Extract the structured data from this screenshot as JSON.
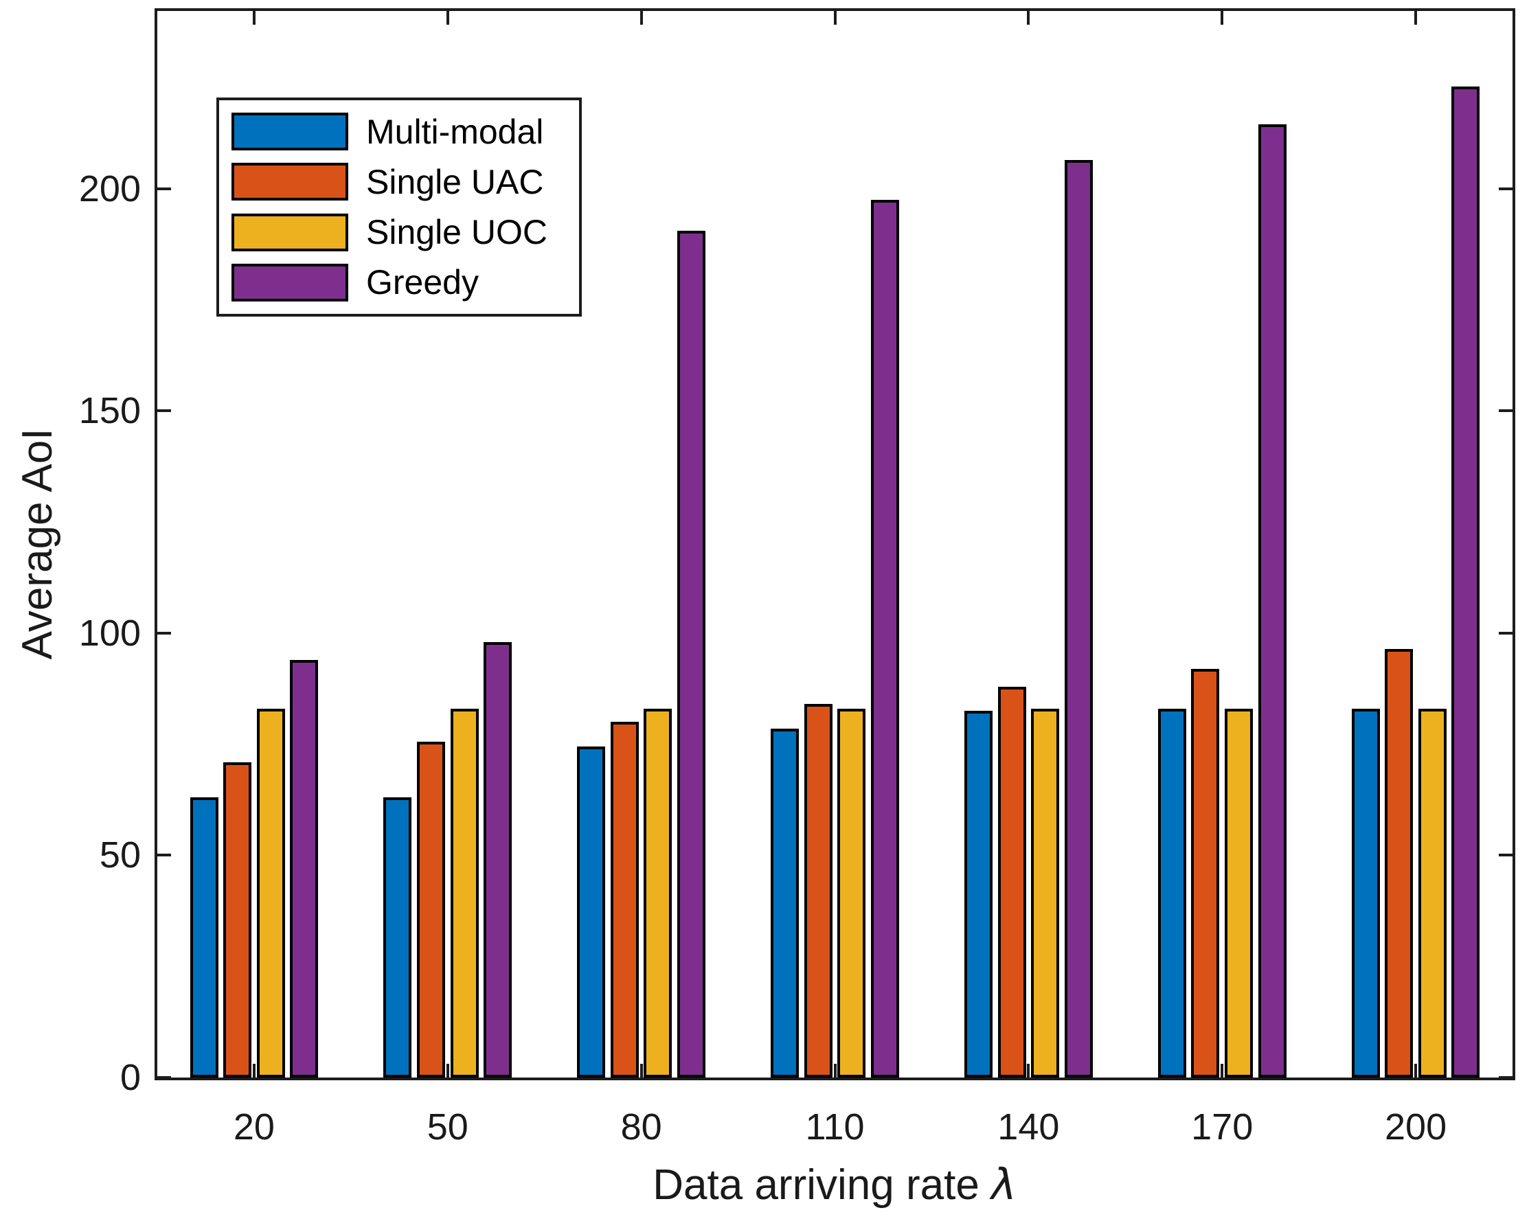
{
  "figure": {
    "background": "#FFFFFF",
    "axis_color": "#1C1C1C",
    "bar_edge_color": "#000000"
  },
  "chart_data": {
    "type": "bar",
    "title": "",
    "xlabel": "Data arriving rate λ",
    "xlabel_prefix": "Data arriving rate ",
    "xlabel_symbol": "λ",
    "ylabel": "Average AoI",
    "categories": [
      "20",
      "50",
      "80",
      "110",
      "140",
      "170",
      "200"
    ],
    "yticks": [
      "0",
      "50",
      "100",
      "150",
      "200"
    ],
    "ylim": [
      0,
      240
    ],
    "grid": false,
    "legend_position": "top-left",
    "series": [
      {
        "name": "Multi-modal",
        "color": "#0072BD",
        "values": [
          63,
          63,
          74.5,
          78.5,
          82.5,
          83,
          83
        ]
      },
      {
        "name": "Single UAC",
        "color": "#D95319",
        "values": [
          71,
          75.5,
          80,
          84,
          88,
          92,
          96.5
        ]
      },
      {
        "name": "Single UOC",
        "color": "#EDB120",
        "values": [
          83,
          83,
          83,
          83,
          83,
          83,
          83
        ]
      },
      {
        "name": "Greedy",
        "color": "#7E2F8E",
        "values": [
          94,
          98,
          190.5,
          197.5,
          206.5,
          214.5,
          223
        ]
      }
    ]
  }
}
